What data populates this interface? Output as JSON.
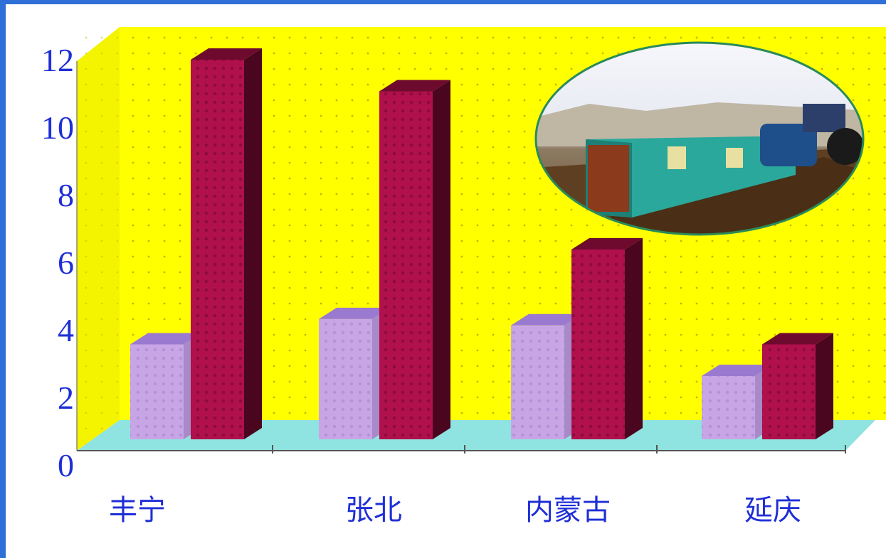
{
  "chart_data": {
    "type": "bar",
    "title": "",
    "xlabel": "",
    "ylabel": "",
    "ylim": [
      0,
      12
    ],
    "yticks": [
      0,
      2,
      4,
      6,
      8,
      10,
      12
    ],
    "categories": [
      "丰宁",
      "张北",
      "内蒙古",
      "延庆"
    ],
    "series": [
      {
        "values": [
          3,
          3.8,
          3.6,
          2
        ]
      },
      {
        "values": [
          12,
          11,
          6,
          3
        ]
      }
    ],
    "legend": "none",
    "grid": "dotted",
    "style": "3d",
    "colors": {
      "wall": "#ffff00",
      "floor": "#8fe3e0",
      "series_0": "#c8a6e6",
      "series_1": "#b0104c",
      "axis_text": "#1f2fd6"
    }
  },
  "inset_photo": {
    "icon": "landscape-photo-icon",
    "description_shown": false
  }
}
